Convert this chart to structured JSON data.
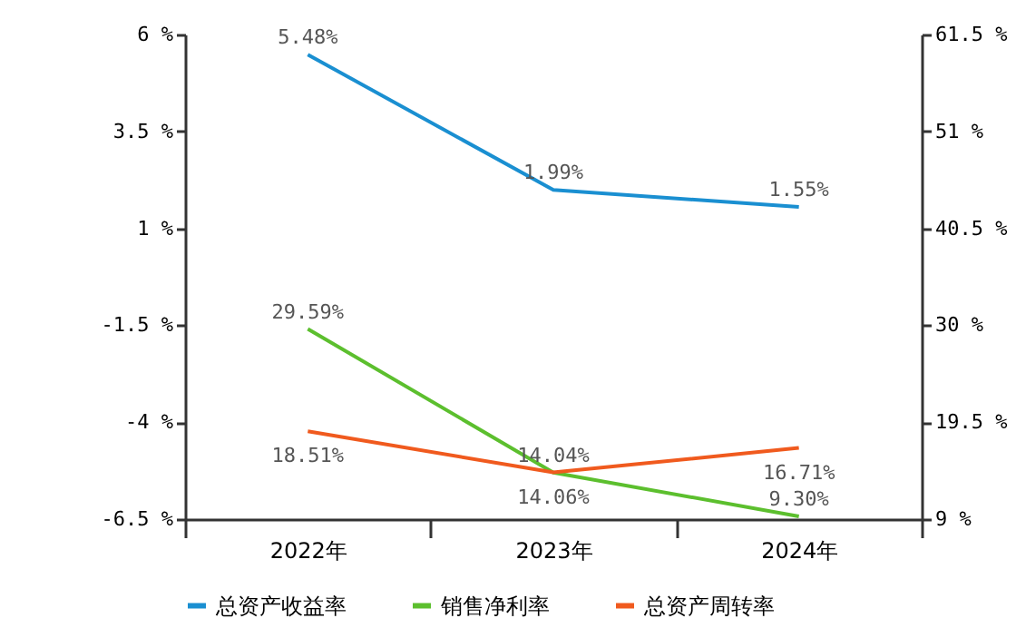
{
  "chart_data": {
    "type": "line",
    "categories": [
      "2022年",
      "2023年",
      "2024年"
    ],
    "series": [
      {
        "name": "总资产收益率",
        "color": "#1a8fd1",
        "values": [
          5.48,
          1.99,
          1.55
        ],
        "value_labels": [
          "5.48%",
          "1.99%",
          "1.55%"
        ]
      },
      {
        "name": "销售净利率",
        "color": "#5cbf2e",
        "axis": "y2",
        "values": [
          29.59,
          14.04,
          9.3
        ],
        "value_labels": [
          "29.59%",
          "14.04%",
          "9.30%"
        ]
      },
      {
        "name": "总资产周转率",
        "color": "#f05a1e",
        "axis": "y2",
        "values": [
          18.51,
          14.06,
          16.71
        ],
        "value_labels": [
          "18.51%",
          "14.06%",
          "16.71%"
        ]
      }
    ],
    "ylim": [
      -6.5,
      6
    ],
    "yticks": [
      {
        "value": -6.5,
        "label": "-6.5 %"
      },
      {
        "value": -4,
        "label": "-4 %"
      },
      {
        "value": -1.5,
        "label": "-1.5 %"
      },
      {
        "value": 1,
        "label": "1 %"
      },
      {
        "value": 3.5,
        "label": "3.5 %"
      },
      {
        "value": 6,
        "label": "6 %"
      }
    ],
    "y2lim": [
      9,
      61.5
    ],
    "y2ticks": [
      {
        "value": 9,
        "label": "9 %"
      },
      {
        "value": 19.5,
        "label": "19.5 %"
      },
      {
        "value": 30,
        "label": "30 %"
      },
      {
        "value": 40.5,
        "label": "40.5 %"
      },
      {
        "value": 51,
        "label": "51 %"
      },
      {
        "value": 61.5,
        "label": "61.5 %"
      }
    ],
    "grid": false,
    "legend": "bottom",
    "marker": "none",
    "line_style": "solid"
  }
}
